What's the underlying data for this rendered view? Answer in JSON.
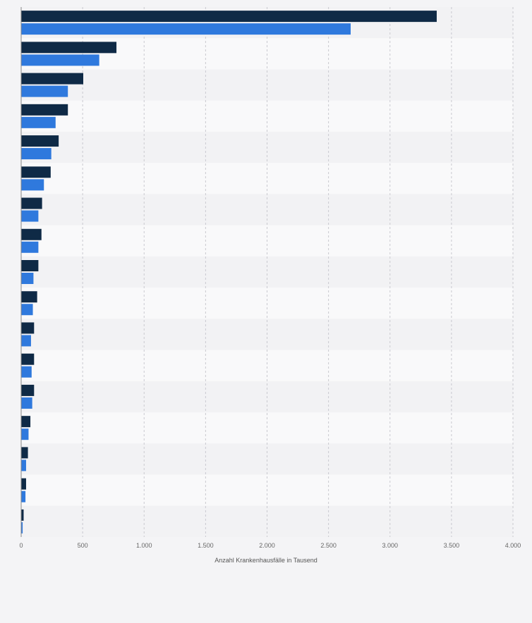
{
  "chart_data": {
    "type": "bar",
    "orientation": "horizontal",
    "categories": [
      "",
      "",
      "",
      "",
      "",
      "",
      "",
      "",
      "",
      "",
      "",
      "",
      "",
      "",
      "",
      "",
      ""
    ],
    "series": [
      {
        "color": "#0f2a46",
        "values": [
          3380,
          775,
          505,
          380,
          305,
          240,
          170,
          165,
          140,
          130,
          105,
          105,
          105,
          75,
          55,
          40,
          20
        ]
      },
      {
        "color": "#2f79dd",
        "values": [
          2680,
          635,
          380,
          280,
          245,
          185,
          140,
          140,
          100,
          95,
          80,
          85,
          90,
          60,
          40,
          35,
          12
        ]
      }
    ],
    "xlabel": "Anzahl Krankenhausfälle in Tausend",
    "xlim": [
      0,
      4000
    ],
    "xticks": [
      0,
      500,
      1000,
      1500,
      2000,
      2500,
      3000,
      3500,
      4000
    ],
    "xtick_labels": [
      "0",
      "500",
      "1.000",
      "1.500",
      "2.000",
      "2.500",
      "3.000",
      "3.500",
      "4.000"
    ],
    "grid": true,
    "band_colors": [
      "#f2f2f4",
      "#f9f9fa"
    ]
  }
}
